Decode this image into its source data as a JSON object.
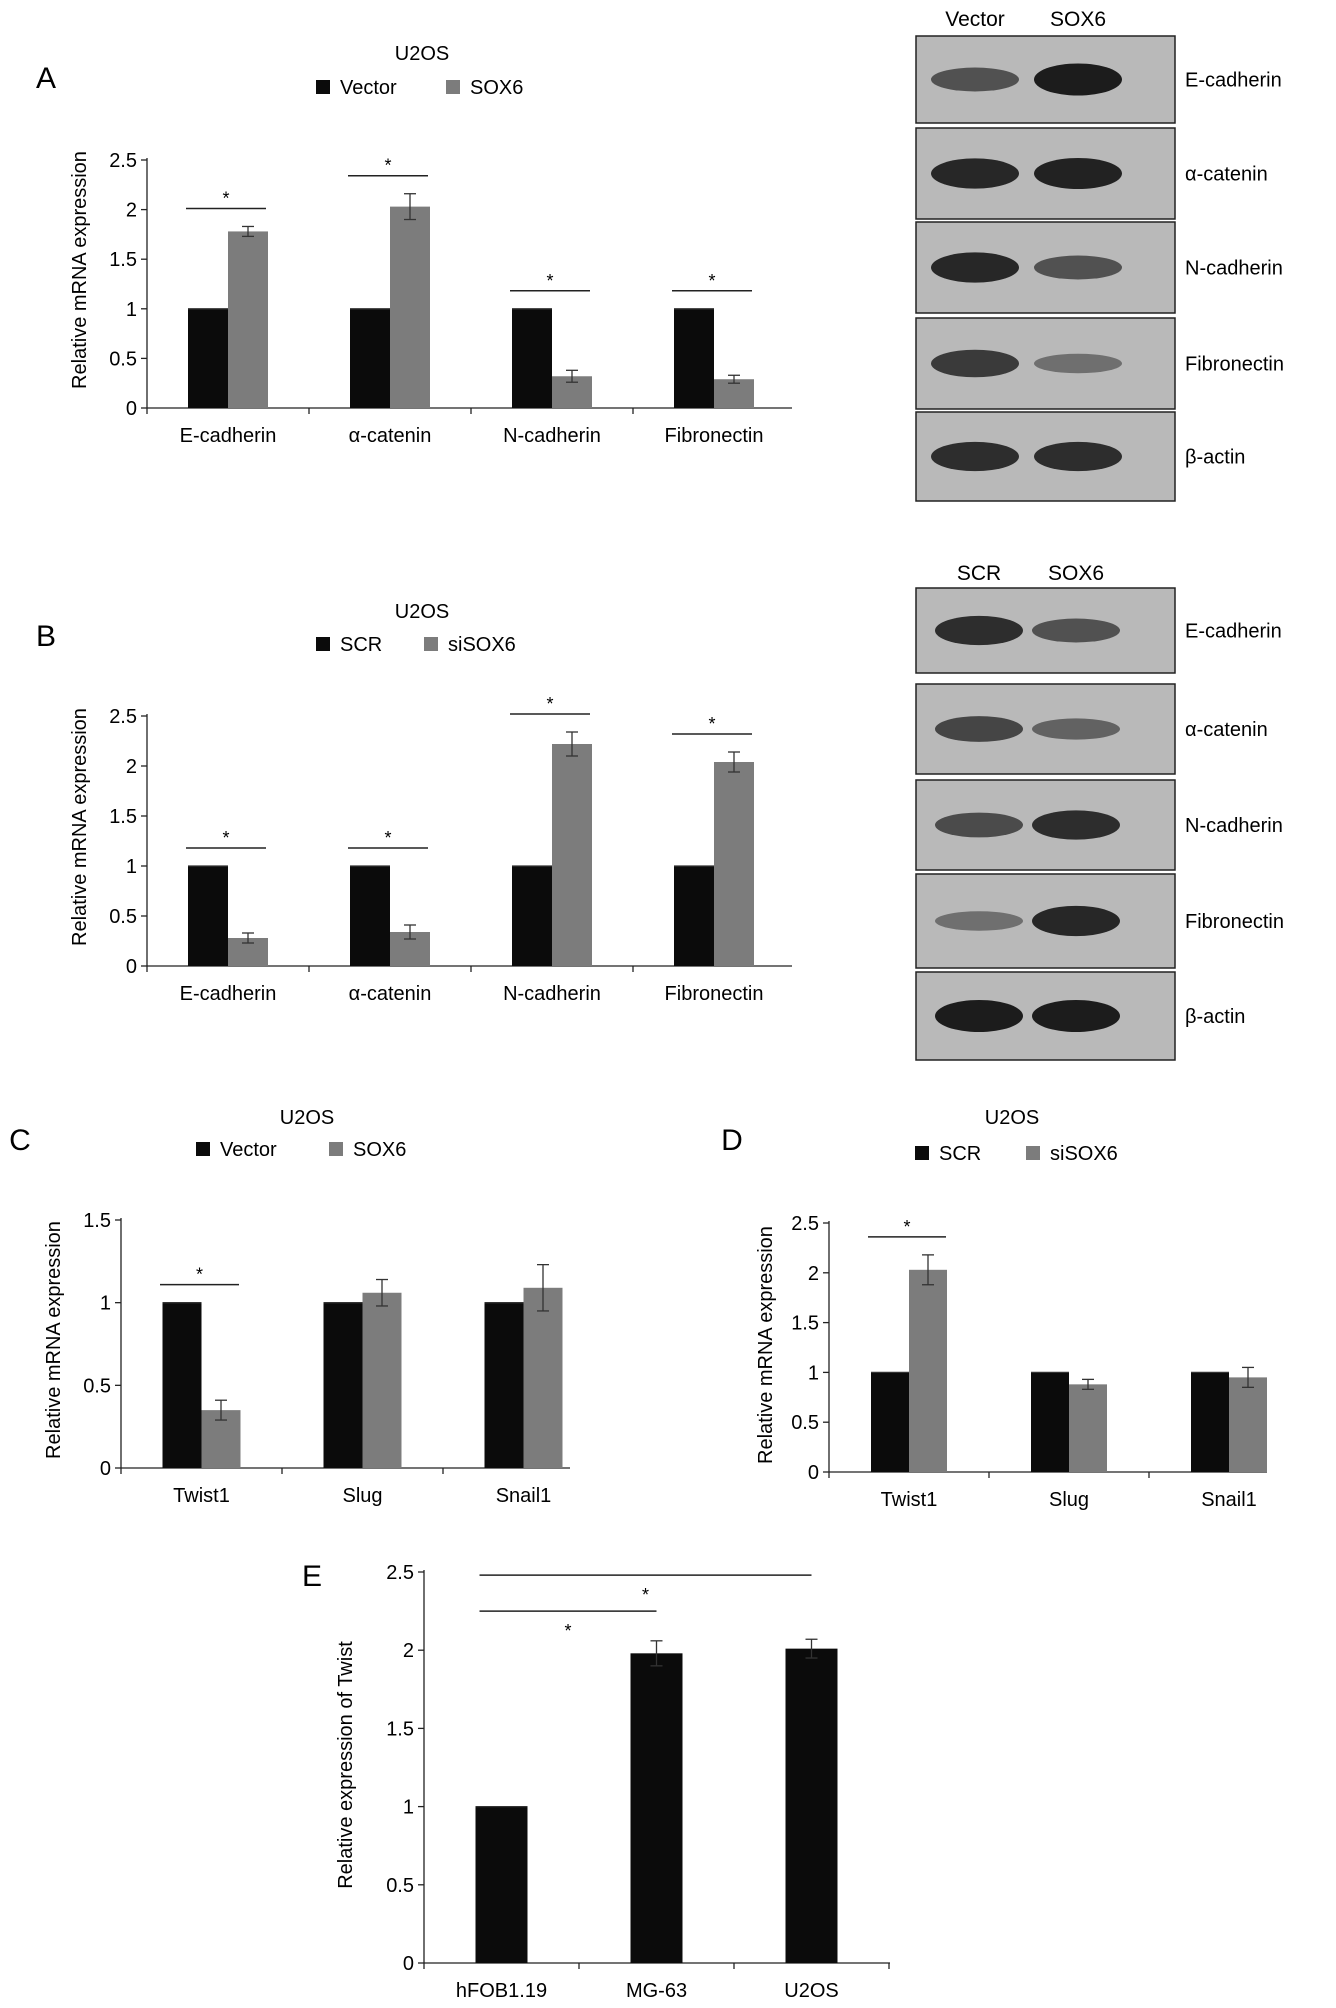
{
  "colors": {
    "series_dark": "#0b0b0b",
    "series_gray": "#7c7c7c",
    "blot_bg": "#b9b9b9",
    "blot_band": "#1c1c1c"
  },
  "chart_data": [
    {
      "id": "A",
      "type": "bar",
      "panel_letter": "A",
      "title": "U2OS",
      "ylabel": "Relative mRNA expression",
      "ylim": [
        0,
        2.5
      ],
      "yticks": [
        "0",
        "0.5",
        "1",
        "1.5",
        "2",
        "2.5"
      ],
      "categories": [
        "E-cadherin",
        "α-catenin",
        "N-cadherin",
        "Fibronectin"
      ],
      "series": [
        {
          "name": "Vector",
          "values": [
            1,
            1,
            1,
            1
          ],
          "errors": [
            0,
            0,
            0,
            0
          ]
        },
        {
          "name": "SOX6",
          "values": [
            1.78,
            2.03,
            0.32,
            0.29
          ],
          "errors": [
            0.05,
            0.13,
            0.06,
            0.04
          ]
        }
      ],
      "significance": [
        {
          "category": "E-cadherin",
          "label": "*"
        },
        {
          "category": "α-catenin",
          "label": "*"
        },
        {
          "category": "N-cadherin",
          "label": "*"
        },
        {
          "category": "Fibronectin",
          "label": "*"
        }
      ]
    },
    {
      "id": "B",
      "type": "bar",
      "panel_letter": "B",
      "title": "U2OS",
      "ylabel": "Relative mRNA expression",
      "ylim": [
        0,
        2.5
      ],
      "yticks": [
        "0",
        "0.5",
        "1",
        "1.5",
        "2",
        "2.5"
      ],
      "categories": [
        "E-cadherin",
        "α-catenin",
        "N-cadherin",
        "Fibronectin"
      ],
      "series": [
        {
          "name": "SCR",
          "values": [
            1,
            1,
            1,
            1
          ],
          "errors": [
            0,
            0,
            0,
            0
          ]
        },
        {
          "name": "siSOX6",
          "values": [
            0.28,
            0.34,
            2.22,
            2.04
          ],
          "errors": [
            0.05,
            0.07,
            0.12,
            0.1
          ]
        }
      ],
      "significance": [
        {
          "category": "E-cadherin",
          "label": "*"
        },
        {
          "category": "α-catenin",
          "label": "*"
        },
        {
          "category": "N-cadherin",
          "label": "*"
        },
        {
          "category": "Fibronectin",
          "label": "*"
        }
      ]
    },
    {
      "id": "C",
      "type": "bar",
      "panel_letter": "C",
      "title": "U2OS",
      "ylabel": "Relative mRNA expression",
      "ylim": [
        0,
        1.5
      ],
      "yticks": [
        "0",
        "0.5",
        "1",
        "1.5"
      ],
      "categories": [
        "Twist1",
        "Slug",
        "Snail1"
      ],
      "series": [
        {
          "name": "Vector",
          "values": [
            1,
            1,
            1
          ],
          "errors": [
            0,
            0,
            0
          ]
        },
        {
          "name": "SOX6",
          "values": [
            0.35,
            1.06,
            1.09
          ],
          "errors": [
            0.06,
            0.08,
            0.14
          ]
        }
      ],
      "significance": [
        {
          "category": "Twist1",
          "label": "*"
        }
      ]
    },
    {
      "id": "D",
      "type": "bar",
      "panel_letter": "D",
      "title": "U2OS",
      "ylabel": "Relative mRNA expression",
      "ylim": [
        0,
        2.5
      ],
      "yticks": [
        "0",
        "0.5",
        "1",
        "1.5",
        "2",
        "2.5"
      ],
      "categories": [
        "Twist1",
        "Slug",
        "Snail1"
      ],
      "series": [
        {
          "name": "SCR",
          "values": [
            1,
            1,
            1
          ],
          "errors": [
            0,
            0,
            0
          ]
        },
        {
          "name": "siSOX6",
          "values": [
            2.03,
            0.88,
            0.95
          ],
          "errors": [
            0.15,
            0.05,
            0.1
          ]
        }
      ],
      "significance": [
        {
          "category": "Twist1",
          "label": "*"
        }
      ]
    },
    {
      "id": "E",
      "type": "bar",
      "panel_letter": "E",
      "title": "",
      "ylabel": "Relative expression of Twist",
      "ylim": [
        0,
        2.5
      ],
      "yticks": [
        "0",
        "0.5",
        "1",
        "1.5",
        "2",
        "2.5"
      ],
      "categories": [
        "hFOB1.19",
        "MG-63",
        "U2OS"
      ],
      "series": [
        {
          "name": "",
          "values": [
            1,
            1.98,
            2.01
          ],
          "errors": [
            0,
            0.08,
            0.06
          ]
        }
      ],
      "significance": [
        {
          "from": "hFOB1.19",
          "to": "MG-63",
          "label": "*"
        },
        {
          "from": "hFOB1.19",
          "to": "U2OS",
          "label": "*"
        }
      ]
    }
  ],
  "blots": [
    {
      "id": "A",
      "columns": [
        "Vector",
        "SOX6"
      ],
      "rows": [
        {
          "label": "E-cadherin",
          "intensity": [
            0.55,
            1.0
          ]
        },
        {
          "label": "α-catenin",
          "intensity": [
            0.9,
            0.95
          ]
        },
        {
          "label": "N-cadherin",
          "intensity": [
            0.9,
            0.55
          ]
        },
        {
          "label": "Fibronectin",
          "intensity": [
            0.75,
            0.3
          ]
        },
        {
          "label": "β-actin",
          "intensity": [
            0.85,
            0.85
          ]
        }
      ]
    },
    {
      "id": "B",
      "columns": [
        "SCR",
        "SOX6"
      ],
      "rows": [
        {
          "label": "E-cadherin",
          "intensity": [
            0.85,
            0.55
          ]
        },
        {
          "label": "α-catenin",
          "intensity": [
            0.65,
            0.4
          ]
        },
        {
          "label": "N-cadherin",
          "intensity": [
            0.6,
            0.85
          ]
        },
        {
          "label": "Fibronectin",
          "intensity": [
            0.3,
            0.9
          ]
        },
        {
          "label": "β-actin",
          "intensity": [
            1.0,
            1.0
          ]
        }
      ]
    }
  ]
}
